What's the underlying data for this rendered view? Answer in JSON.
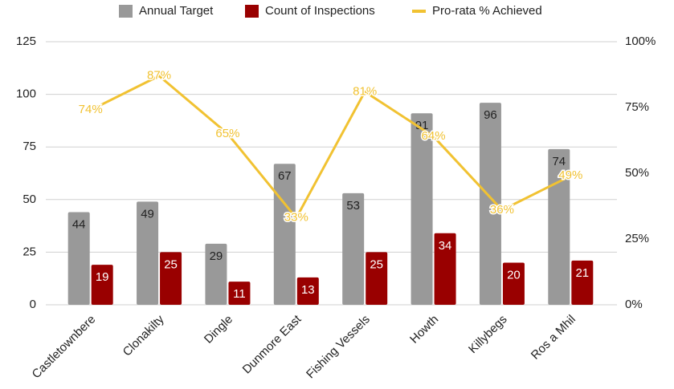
{
  "chart_data": {
    "type": "bar",
    "categories": [
      "Castletownbere",
      "Clonakilty",
      "Dingle",
      "Dunmore East",
      "Fishing Vessels",
      "Howth",
      "Killybegs",
      "Ros a Mhil"
    ],
    "series": [
      {
        "name": "Annual Target",
        "color": "#999999",
        "values": [
          44,
          49,
          29,
          67,
          53,
          91,
          96,
          74
        ]
      },
      {
        "name": "Count of Inspections",
        "color": "#990000",
        "values": [
          19,
          25,
          11,
          13,
          25,
          34,
          20,
          21
        ]
      },
      {
        "name": "Pro-rata % Achieved",
        "color": "#f1c232",
        "type": "line",
        "axis": "y2",
        "values": [
          74,
          87,
          65,
          33,
          81,
          64,
          36,
          49
        ],
        "value_labels": [
          "74%",
          "87%",
          "65%",
          "33%",
          "81%",
          "64%",
          "36%",
          "49%"
        ]
      }
    ],
    "ylim": [
      0,
      125
    ],
    "yticks": [
      0,
      25,
      50,
      75,
      100,
      125
    ],
    "y2lim": [
      0,
      100
    ],
    "y2ticks": [
      {
        "value": 0,
        "label": "0%"
      },
      {
        "value": 25,
        "label": "25%"
      },
      {
        "value": 50,
        "label": "50%"
      },
      {
        "value": 75,
        "label": "75%"
      },
      {
        "value": 100,
        "label": "100%"
      }
    ],
    "grid": true,
    "legend": "top"
  }
}
